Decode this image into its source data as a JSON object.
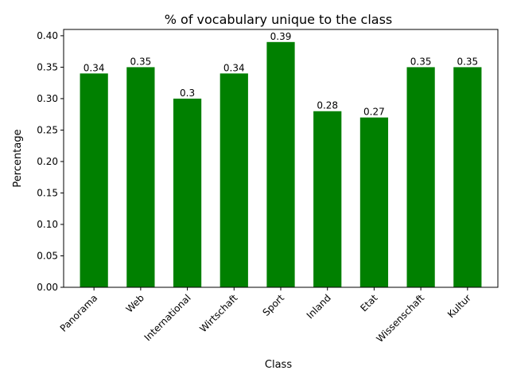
{
  "chart_data": {
    "type": "bar",
    "title": "% of vocabulary unique to the class",
    "xlabel": "Class",
    "ylabel": "Percentage",
    "categories": [
      "Panorama",
      "Web",
      "International",
      "Wirtschaft",
      "Sport",
      "Inland",
      "Etat",
      "Wissenschaft",
      "Kultur"
    ],
    "values": [
      0.34,
      0.35,
      0.3,
      0.34,
      0.39,
      0.28,
      0.27,
      0.35,
      0.35
    ],
    "value_labels": [
      "0.34",
      "0.35",
      "0.3",
      "0.34",
      "0.39",
      "0.28",
      "0.27",
      "0.35",
      "0.35"
    ],
    "ylim": [
      0,
      0.41
    ],
    "yticks": [
      0.0,
      0.05,
      0.1,
      0.15,
      0.2,
      0.25,
      0.3,
      0.35,
      0.4
    ],
    "ytick_labels": [
      "0.00",
      "0.05",
      "0.10",
      "0.15",
      "0.20",
      "0.25",
      "0.30",
      "0.35",
      "0.40"
    ],
    "bar_color": "#008000",
    "grid": false,
    "legend": false
  }
}
